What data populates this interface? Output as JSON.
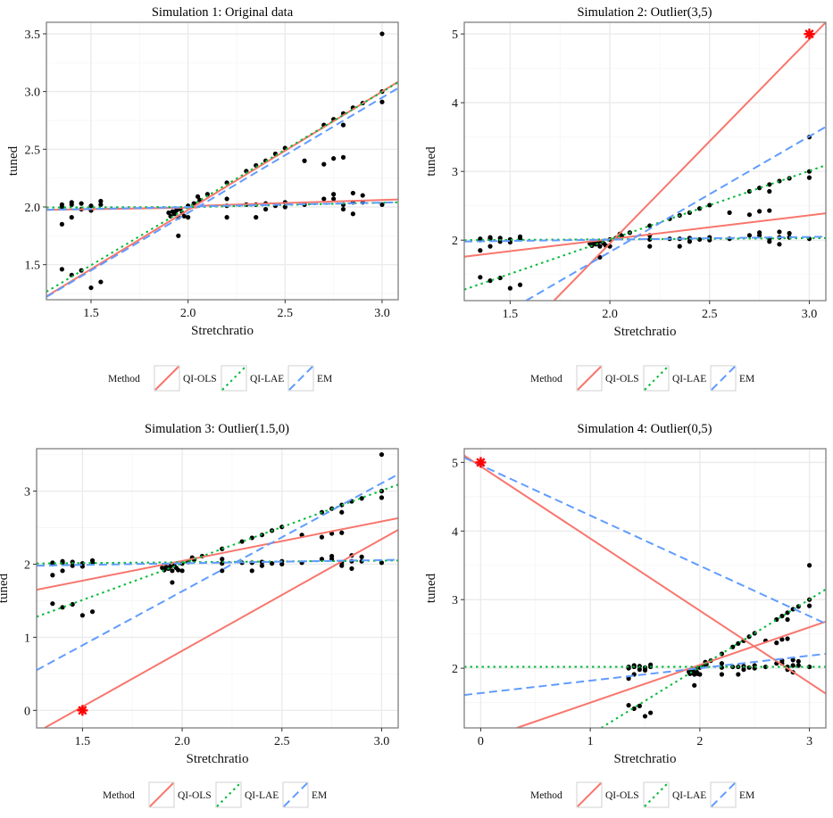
{
  "chart_data": [
    {
      "type": "scatter",
      "title": "Simulation 1: Original data",
      "xlabel": "Stretchratio",
      "ylabel": "tuned",
      "xlim": [
        1.27,
        3.083
      ],
      "ylim": [
        1.196,
        3.6
      ],
      "xticks": [
        1.5,
        2.0,
        2.5,
        3.0
      ],
      "xtick_labels": [
        "1.5",
        "2.0",
        "2.5",
        "3.0"
      ],
      "yticks": [
        1.5,
        2.0,
        2.5,
        3.0,
        3.5
      ],
      "ytick_labels": [
        "1.5",
        "2.0",
        "2.5",
        "3.0",
        "3.5"
      ],
      "grid": true,
      "outlier": null,
      "lines": [
        {
          "method": "QI-OLS",
          "x": [
            1.27,
            2.05
          ],
          "y": [
            1.975,
            1.995
          ]
        },
        {
          "method": "QI-OLS",
          "x": [
            2.05,
            3.083
          ],
          "y": [
            2.01,
            2.065
          ]
        },
        {
          "method": "QI-OLS",
          "x": [
            1.27,
            3.083
          ],
          "y": [
            1.225,
            3.085
          ]
        },
        {
          "method": "QI-LAE",
          "x": [
            1.27,
            2.05
          ],
          "y": [
            1.995,
            2.0
          ]
        },
        {
          "method": "QI-LAE",
          "x": [
            2.05,
            3.083
          ],
          "y": [
            2.0,
            2.04
          ]
        },
        {
          "method": "QI-LAE",
          "x": [
            1.27,
            3.083
          ],
          "y": [
            1.265,
            3.08
          ]
        },
        {
          "method": "EM",
          "x": [
            1.27,
            2.05
          ],
          "y": [
            1.975,
            2.0
          ]
        },
        {
          "method": "EM",
          "x": [
            2.05,
            3.083
          ],
          "y": [
            2.005,
            2.04
          ]
        },
        {
          "method": "EM",
          "x": [
            1.27,
            3.083
          ],
          "y": [
            1.22,
            3.03
          ]
        }
      ]
    },
    {
      "type": "scatter",
      "title": "Simulation 2: Outlier(3,5)",
      "xlabel": "Stretchratio",
      "ylabel": "tuned",
      "xlim": [
        1.27,
        3.083
      ],
      "ylim": [
        1.12,
        5.17
      ],
      "xticks": [
        1.5,
        2.0,
        2.5,
        3.0
      ],
      "xtick_labels": [
        "1.5",
        "2.0",
        "2.5",
        "3.0"
      ],
      "yticks": [
        2,
        3,
        4,
        5
      ],
      "ytick_labels": [
        "2",
        "3",
        "4",
        "5"
      ],
      "grid": true,
      "outlier": {
        "x": 3,
        "y": 5
      },
      "lines": [
        {
          "method": "QI-OLS",
          "x": [
            1.72,
            3.083
          ],
          "y": [
            1.12,
            5.17
          ]
        },
        {
          "method": "QI-OLS",
          "x": [
            1.27,
            3.083
          ],
          "y": [
            1.76,
            2.39
          ]
        },
        {
          "method": "QI-LAE",
          "x": [
            1.27,
            3.083
          ],
          "y": [
            1.28,
            3.09
          ]
        },
        {
          "method": "QI-LAE",
          "x": [
            1.27,
            3.083
          ],
          "y": [
            2.0,
            2.03
          ]
        },
        {
          "method": "EM",
          "x": [
            1.58,
            3.083
          ],
          "y": [
            1.12,
            3.65
          ]
        },
        {
          "method": "EM",
          "x": [
            1.27,
            3.083
          ],
          "y": [
            1.98,
            2.05
          ]
        }
      ]
    },
    {
      "type": "scatter",
      "title": "Simulation 3: Outlier(1.5,0)",
      "xlabel": "Stretchratio",
      "ylabel": "tuned",
      "xlim": [
        1.27,
        3.083
      ],
      "ylim": [
        -0.24,
        3.58
      ],
      "xticks": [
        1.5,
        2.0,
        2.5,
        3.0
      ],
      "xtick_labels": [
        "1.5",
        "2.0",
        "2.5",
        "3.0"
      ],
      "yticks": [
        0,
        1,
        2,
        3
      ],
      "ytick_labels": [
        "0",
        "1",
        "2",
        "3"
      ],
      "grid": true,
      "outlier": {
        "x": 1.5,
        "y": 0
      },
      "lines": [
        {
          "method": "QI-OLS",
          "x": [
            1.27,
            3.083
          ],
          "y": [
            1.65,
            2.63
          ]
        },
        {
          "method": "QI-OLS",
          "x": [
            1.31,
            3.083
          ],
          "y": [
            -0.24,
            2.47
          ]
        },
        {
          "method": "QI-LAE",
          "x": [
            1.27,
            3.083
          ],
          "y": [
            1.28,
            3.09
          ]
        },
        {
          "method": "QI-LAE",
          "x": [
            1.27,
            3.083
          ],
          "y": [
            2.01,
            2.05
          ]
        },
        {
          "method": "EM",
          "x": [
            1.27,
            3.083
          ],
          "y": [
            0.55,
            3.23
          ]
        },
        {
          "method": "EM",
          "x": [
            1.27,
            3.083
          ],
          "y": [
            1.98,
            2.06
          ]
        }
      ]
    },
    {
      "type": "scatter",
      "title": "Simulation 4: Outlier(0,5)",
      "xlabel": "Stretchratio",
      "ylabel": "tuned",
      "xlim": [
        -0.15,
        3.15
      ],
      "ylim": [
        1.13,
        5.2
      ],
      "xticks": [
        0,
        1,
        2,
        3
      ],
      "xtick_labels": [
        "0",
        "1",
        "2",
        "3"
      ],
      "yticks": [
        2,
        3,
        4,
        5
      ],
      "ytick_labels": [
        "2",
        "3",
        "4",
        "5"
      ],
      "grid": true,
      "outlier": {
        "x": 0,
        "y": 5
      },
      "lines": [
        {
          "method": "QI-OLS",
          "x": [
            -0.15,
            3.15
          ],
          "y": [
            5.1,
            1.63
          ]
        },
        {
          "method": "QI-OLS",
          "x": [
            0.33,
            3.15
          ],
          "y": [
            1.13,
            2.68
          ]
        },
        {
          "method": "QI-LAE",
          "x": [
            -0.15,
            3.15
          ],
          "y": [
            2.02,
            2.02
          ]
        },
        {
          "method": "QI-LAE",
          "x": [
            1.1,
            3.15
          ],
          "y": [
            1.13,
            3.15
          ]
        },
        {
          "method": "EM",
          "x": [
            -0.15,
            3.15
          ],
          "y": [
            5.07,
            2.65
          ]
        },
        {
          "method": "EM",
          "x": [
            -0.15,
            3.15
          ],
          "y": [
            1.61,
            2.21
          ]
        }
      ]
    }
  ],
  "points": [
    [
      1.35,
      2.02
    ],
    [
      1.35,
      2.0
    ],
    [
      1.35,
      1.85
    ],
    [
      1.35,
      1.46
    ],
    [
      1.4,
      2.04
    ],
    [
      1.4,
      2.02
    ],
    [
      1.4,
      1.91
    ],
    [
      1.4,
      1.41
    ],
    [
      1.45,
      2.03
    ],
    [
      1.45,
      1.98
    ],
    [
      1.45,
      1.45
    ],
    [
      1.5,
      2.01
    ],
    [
      1.5,
      1.97
    ],
    [
      1.5,
      1.3
    ],
    [
      1.55,
      2.05
    ],
    [
      1.55,
      2.02
    ],
    [
      1.55,
      1.35
    ],
    [
      1.9,
      1.95
    ],
    [
      1.91,
      1.92
    ],
    [
      1.92,
      1.96
    ],
    [
      1.93,
      1.94
    ],
    [
      1.94,
      1.97
    ],
    [
      1.95,
      1.91
    ],
    [
      1.96,
      1.98
    ],
    [
      1.97,
      1.95
    ],
    [
      1.98,
      1.92
    ],
    [
      1.95,
      1.75
    ],
    [
      2.0,
      1.91
    ],
    [
      2.0,
      2.01
    ],
    [
      2.03,
      2.03
    ],
    [
      2.05,
      2.09
    ],
    [
      2.06,
      2.06
    ],
    [
      2.1,
      2.11
    ],
    [
      2.2,
      2.21
    ],
    [
      2.2,
      2.07
    ],
    [
      2.2,
      2.01
    ],
    [
      2.2,
      1.91
    ],
    [
      2.3,
      2.31
    ],
    [
      2.3,
      2.02
    ],
    [
      2.35,
      2.36
    ],
    [
      2.35,
      2.02
    ],
    [
      2.35,
      1.91
    ],
    [
      2.4,
      2.4
    ],
    [
      2.4,
      2.03
    ],
    [
      2.4,
      1.98
    ],
    [
      2.45,
      2.46
    ],
    [
      2.45,
      2.01
    ],
    [
      2.5,
      2.51
    ],
    [
      2.5,
      2.04
    ],
    [
      2.5,
      2.0
    ],
    [
      2.6,
      2.4
    ],
    [
      2.6,
      2.02
    ],
    [
      2.7,
      2.71
    ],
    [
      2.7,
      2.37
    ],
    [
      2.7,
      2.07
    ],
    [
      2.75,
      2.76
    ],
    [
      2.75,
      2.42
    ],
    [
      2.75,
      2.11
    ],
    [
      2.75,
      2.07
    ],
    [
      2.8,
      2.81
    ],
    [
      2.8,
      2.71
    ],
    [
      2.8,
      2.43
    ],
    [
      2.8,
      2.02
    ],
    [
      2.8,
      1.98
    ],
    [
      2.85,
      2.86
    ],
    [
      2.85,
      2.12
    ],
    [
      2.85,
      2.04
    ],
    [
      2.85,
      1.94
    ],
    [
      2.9,
      2.9
    ],
    [
      2.9,
      2.1
    ],
    [
      2.9,
      2.04
    ],
    [
      3.0,
      3.5
    ],
    [
      3.0,
      3.0
    ],
    [
      3.0,
      2.91
    ],
    [
      3.0,
      2.02
    ]
  ],
  "legend": {
    "title": "Method",
    "position": "bottom",
    "entries": [
      {
        "label": "QI-OLS",
        "color": "#f8766d",
        "dash": "solid"
      },
      {
        "label": "QI-LAE",
        "color": "#00ba38",
        "dash": "dotted"
      },
      {
        "label": "EM",
        "color": "#619cff",
        "dash": "dashed"
      }
    ]
  },
  "colors": {
    "point": "#000000",
    "outlier": "#ff0000",
    "grid": "#ebebeb",
    "frame": "#7f7f7f"
  }
}
